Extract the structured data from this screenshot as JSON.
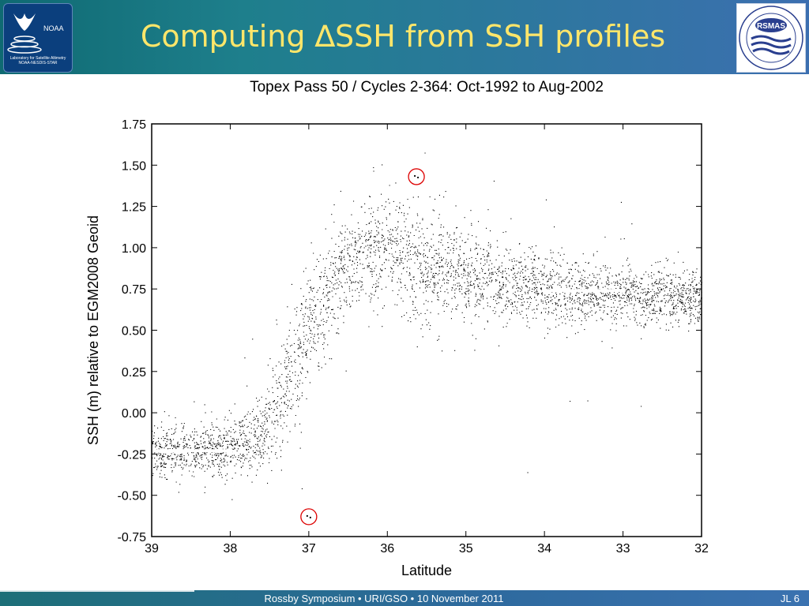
{
  "header": {
    "title": "Computing ∆SSH from SSH profiles",
    "left_logo": {
      "name": "NOAA",
      "caption": "Laboratory for Satellite Altimetry NOAA-NESDIS-STAR"
    },
    "right_logo": {
      "name": "RSMAS"
    }
  },
  "chart_data": {
    "type": "scatter",
    "title": "Topex Pass 50 / Cycles 2-364: Oct-1992 to Aug-2002",
    "xlabel": "Latitude",
    "ylabel": "SSH (m) relative to EGM2008 Geoid",
    "xlim": [
      39,
      32
    ],
    "ylim": [
      -0.75,
      1.75
    ],
    "x_ticks": [
      "39",
      "38",
      "37",
      "36",
      "35",
      "34",
      "33",
      "32"
    ],
    "y_ticks": [
      "1.75",
      "1.50",
      "1.25",
      "1.00",
      "0.75",
      "0.50",
      "0.25",
      "0.00",
      "-0.25",
      "-0.50",
      "-0.75"
    ],
    "grid": false,
    "x_axis_reversed": true,
    "profile_envelope": {
      "latitude": [
        39.0,
        38.5,
        38.0,
        37.6,
        37.3,
        37.0,
        36.7,
        36.4,
        36.0,
        35.7,
        35.4,
        35.0,
        34.5,
        34.0,
        33.5,
        33.0,
        32.5,
        32.0
      ],
      "ssh_mean": [
        -0.23,
        -0.24,
        -0.21,
        -0.12,
        0.15,
        0.5,
        0.78,
        0.95,
        1.0,
        0.92,
        0.87,
        0.83,
        0.78,
        0.75,
        0.73,
        0.72,
        0.7,
        0.68
      ],
      "ssh_spread": [
        0.09,
        0.08,
        0.1,
        0.14,
        0.2,
        0.22,
        0.2,
        0.16,
        0.18,
        0.22,
        0.2,
        0.16,
        0.13,
        0.12,
        0.11,
        0.1,
        0.1,
        0.1
      ]
    },
    "mean_segments": [
      {
        "lat_start": 39.0,
        "lat_end": 38.0,
        "ssh": -0.23
      },
      {
        "lat_start": 34.0,
        "lat_end": 33.0,
        "ssh": 0.74
      }
    ],
    "highlighted_points": [
      {
        "lat": 35.63,
        "ssh": 1.43
      },
      {
        "lat": 37.0,
        "ssh": -0.63
      }
    ],
    "colors": {
      "points": "#000000",
      "mean_segments": "#ffffff",
      "highlight": "#dd0000"
    }
  },
  "footer": {
    "text": "Rossby Symposium • URI/GSO • 10 November 2011",
    "slide_number": "JL 6"
  }
}
